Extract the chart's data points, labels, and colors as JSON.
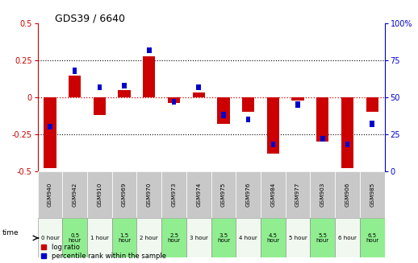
{
  "title": "GDS39 / 6640",
  "samples": [
    "GSM940",
    "GSM942",
    "GSM910",
    "GSM969",
    "GSM970",
    "GSM973",
    "GSM974",
    "GSM975",
    "GSM976",
    "GSM984",
    "GSM977",
    "GSM903",
    "GSM906",
    "GSM985"
  ],
  "time_labels": [
    "0 hour",
    "0.5\nhour",
    "1 hour",
    "1.5\nhour",
    "2 hour",
    "2.5\nhour",
    "3 hour",
    "3.5\nhour",
    "4 hour",
    "4.5\nhour",
    "5 hour",
    "5.5\nhour",
    "6 hour",
    "6.5\nhour"
  ],
  "log_ratio": [
    -0.48,
    0.15,
    -0.12,
    0.05,
    0.28,
    -0.04,
    0.03,
    -0.18,
    -0.1,
    -0.38,
    -0.02,
    -0.3,
    -0.48,
    -0.1
  ],
  "percentile": [
    30,
    68,
    57,
    58,
    82,
    47,
    57,
    38,
    35,
    18,
    45,
    22,
    18,
    32
  ],
  "ylim_left": [
    -0.5,
    0.5
  ],
  "yticks_left": [
    -0.5,
    -0.25,
    0.0,
    0.25,
    0.5
  ],
  "yticks_right": [
    0,
    25,
    50,
    75,
    100
  ],
  "bar_color_red": "#cc0000",
  "bar_color_blue": "#0000cc",
  "dotted_color": "#000000",
  "zero_line_color": "#cc0000",
  "sample_bg": "#c8c8c8",
  "time_bg_white": "#f0f8f0",
  "time_bg_green": "#90ee90",
  "bar_width": 0.5,
  "blue_bar_width": 0.18
}
